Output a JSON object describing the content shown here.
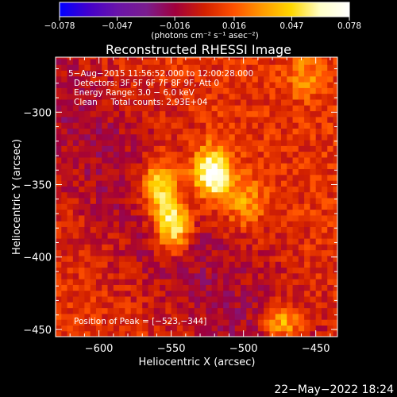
{
  "chart_data": {
    "type": "heatmap",
    "title": "Reconstructed RHESSI Image",
    "xlabel": "Heliocentric X (arcsec)",
    "ylabel": "Heliocentric Y (arcsec)",
    "xlim": [
      -630,
      -435
    ],
    "ylim": [
      -455,
      -262
    ],
    "x_ticks": [
      -600,
      -550,
      -500,
      -450
    ],
    "x_tick_labels": [
      "−600",
      "−550",
      "−500",
      "−450"
    ],
    "y_ticks": [
      -300,
      -350,
      -400,
      -450
    ],
    "y_tick_labels": [
      "−300",
      "−350",
      "−400",
      "−450"
    ],
    "colorbar": {
      "min": -0.078,
      "max": 0.078,
      "ticks": [
        -0.078,
        -0.047,
        -0.016,
        0.016,
        0.047,
        0.078
      ],
      "tick_labels": [
        "−0.078",
        "−0.047",
        "−0.016",
        "0.016",
        "0.047",
        "0.078"
      ],
      "units_label": "(photons cm⁻² s⁻¹ asec⁻²)",
      "colormap": [
        "#0000ff",
        "#4400cc",
        "#6a14a8",
        "#7a1d8e",
        "#a0003c",
        "#d22000",
        "#ff5000",
        "#ff9a00",
        "#ffd800",
        "#ffffc8",
        "#ffffff"
      ]
    },
    "annotations": [
      "5−Aug−2015 11:56:52.000 to 12:00:28.000",
      "Detectors: 3F 5F 6F 7F 8F 9F, Att 0",
      "Energy Range: 3.0 − 6.0 keV",
      "Clean     Total counts: 2.93E+04"
    ],
    "peak_label": "Position of Peak = [−523,−344]",
    "peak": [
      -523,
      -344
    ],
    "sources": [
      {
        "x": -522,
        "y": -342,
        "sx": 9,
        "sy": 12,
        "amp": 0.078
      },
      {
        "x": -558,
        "y": -352,
        "sx": 9,
        "sy": 14,
        "amp": 0.06
      },
      {
        "x": -548,
        "y": -378,
        "sx": 8,
        "sy": 12,
        "amp": 0.068
      },
      {
        "x": -500,
        "y": -362,
        "sx": 10,
        "sy": 12,
        "amp": 0.03
      },
      {
        "x": -473,
        "y": -445,
        "sx": 10,
        "sy": 8,
        "amp": 0.045
      },
      {
        "x": -457,
        "y": -275,
        "sx": 8,
        "sy": 10,
        "amp": 0.025
      }
    ],
    "background_level": 0.006
  },
  "footer_timestamp": "22−May−2022 18:24"
}
